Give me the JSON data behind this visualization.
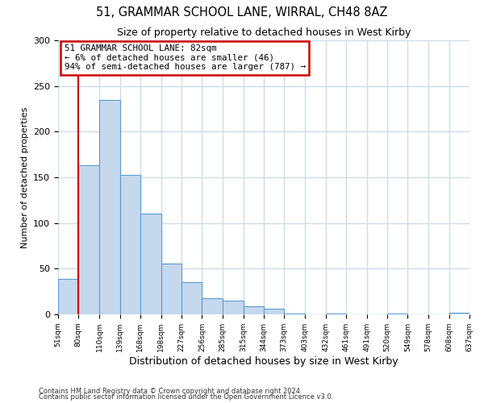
{
  "title": "51, GRAMMAR SCHOOL LANE, WIRRAL, CH48 8AZ",
  "subtitle": "Size of property relative to detached houses in West Kirby",
  "xlabel": "Distribution of detached houses by size in West Kirby",
  "ylabel": "Number of detached properties",
  "bar_left_edges": [
    51,
    80,
    110,
    139,
    168,
    198,
    227,
    256,
    285,
    315,
    344,
    373,
    403,
    432,
    461,
    491,
    520,
    549,
    578,
    608
  ],
  "bar_widths": [
    29,
    30,
    29,
    29,
    30,
    29,
    29,
    29,
    30,
    29,
    29,
    30,
    29,
    29,
    30,
    29,
    29,
    29,
    30,
    29
  ],
  "bar_heights": [
    39,
    163,
    235,
    153,
    110,
    56,
    35,
    18,
    15,
    9,
    6,
    1,
    0,
    1,
    0,
    0,
    1,
    0,
    0,
    2
  ],
  "bar_color": "#c5d8ed",
  "bar_edge_color": "#5b9bd5",
  "tick_labels": [
    "51sqm",
    "80sqm",
    "110sqm",
    "139sqm",
    "168sqm",
    "198sqm",
    "227sqm",
    "256sqm",
    "285sqm",
    "315sqm",
    "344sqm",
    "373sqm",
    "403sqm",
    "432sqm",
    "461sqm",
    "491sqm",
    "520sqm",
    "549sqm",
    "578sqm",
    "608sqm",
    "637sqm"
  ],
  "tick_positions": [
    51,
    80,
    110,
    139,
    168,
    198,
    227,
    256,
    285,
    315,
    344,
    373,
    403,
    432,
    461,
    491,
    520,
    549,
    578,
    608,
    637
  ],
  "ylim": [
    0,
    300
  ],
  "xlim": [
    51,
    637
  ],
  "red_line_x": 80,
  "annotation_title": "51 GRAMMAR SCHOOL LANE: 82sqm",
  "annotation_line1": "← 6% of detached houses are smaller (46)",
  "annotation_line2": "94% of semi-detached houses are larger (787) →",
  "annotation_box_color": "#ffffff",
  "annotation_box_edge_color": "#cc0000",
  "footer1": "Contains HM Land Registry data © Crown copyright and database right 2024.",
  "footer2": "Contains public sector information licensed under the Open Government Licence v3.0.",
  "background_color": "#ffffff",
  "grid_color": "#d0dce8",
  "yticks": [
    0,
    50,
    100,
    150,
    200,
    250,
    300
  ]
}
